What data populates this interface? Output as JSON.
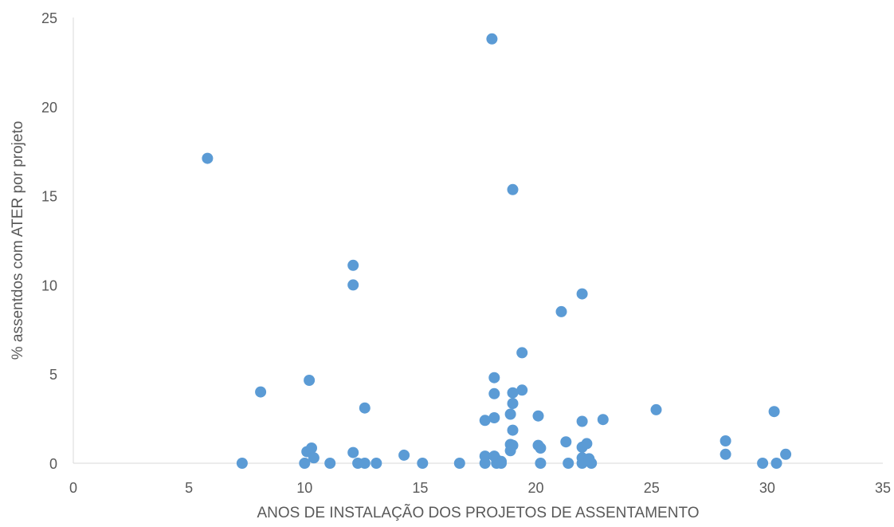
{
  "chart_data": {
    "type": "scatter",
    "title": "",
    "xlabel": "ANOS DE INSTALAÇÃO DOS PROJETOS DE ASSENTAMENTO",
    "ylabel": "% assentdos com ATER por projeto",
    "xlim": [
      0,
      35
    ],
    "ylim": [
      0,
      25
    ],
    "x_ticks": [
      "0",
      "5",
      "10",
      "15",
      "20",
      "25",
      "30",
      "35"
    ],
    "y_ticks": [
      "0",
      "5",
      "10",
      "15",
      "20",
      "25"
    ],
    "grid": false,
    "legend": "none",
    "marker_color": "#5B9BD5",
    "series": [
      {
        "points": [
          [
            5.8,
            17.1
          ],
          [
            7.3,
            0.0
          ],
          [
            8.1,
            4.0
          ],
          [
            10.0,
            0.0
          ],
          [
            10.1,
            0.65
          ],
          [
            10.2,
            4.65
          ],
          [
            10.3,
            0.85
          ],
          [
            10.4,
            0.3
          ],
          [
            11.1,
            0.0
          ],
          [
            12.1,
            11.1
          ],
          [
            12.1,
            10.0
          ],
          [
            12.1,
            0.6
          ],
          [
            12.3,
            0.0
          ],
          [
            12.6,
            3.1
          ],
          [
            12.6,
            0.0
          ],
          [
            13.1,
            0.0
          ],
          [
            14.3,
            0.45
          ],
          [
            15.1,
            0.0
          ],
          [
            16.7,
            0.0
          ],
          [
            17.8,
            2.4
          ],
          [
            17.8,
            0.4
          ],
          [
            17.8,
            0.0
          ],
          [
            18.1,
            23.8
          ],
          [
            18.2,
            4.8
          ],
          [
            18.2,
            3.9
          ],
          [
            18.2,
            2.55
          ],
          [
            18.2,
            0.4
          ],
          [
            18.3,
            0.2
          ],
          [
            18.3,
            0.0
          ],
          [
            18.5,
            0.1
          ],
          [
            18.5,
            0.0
          ],
          [
            18.9,
            2.75
          ],
          [
            18.9,
            1.05
          ],
          [
            18.9,
            0.7
          ],
          [
            19.0,
            15.35
          ],
          [
            19.0,
            3.95
          ],
          [
            19.0,
            3.35
          ],
          [
            19.0,
            1.85
          ],
          [
            19.0,
            1.0
          ],
          [
            19.4,
            6.2
          ],
          [
            19.4,
            4.1
          ],
          [
            20.1,
            2.65
          ],
          [
            20.1,
            1.0
          ],
          [
            20.2,
            0.85
          ],
          [
            20.2,
            0.0
          ],
          [
            21.1,
            8.5
          ],
          [
            21.3,
            1.2
          ],
          [
            21.4,
            0.0
          ],
          [
            22.0,
            9.5
          ],
          [
            22.0,
            2.35
          ],
          [
            22.0,
            0.9
          ],
          [
            22.0,
            0.3
          ],
          [
            22.0,
            0.0
          ],
          [
            22.2,
            1.1
          ],
          [
            22.3,
            0.25
          ],
          [
            22.4,
            0.0
          ],
          [
            22.9,
            2.45
          ],
          [
            25.2,
            3.0
          ],
          [
            28.2,
            1.25
          ],
          [
            28.2,
            0.5
          ],
          [
            29.8,
            0.0
          ],
          [
            30.3,
            2.9
          ],
          [
            30.4,
            0.0
          ],
          [
            30.8,
            0.5
          ]
        ]
      }
    ]
  }
}
